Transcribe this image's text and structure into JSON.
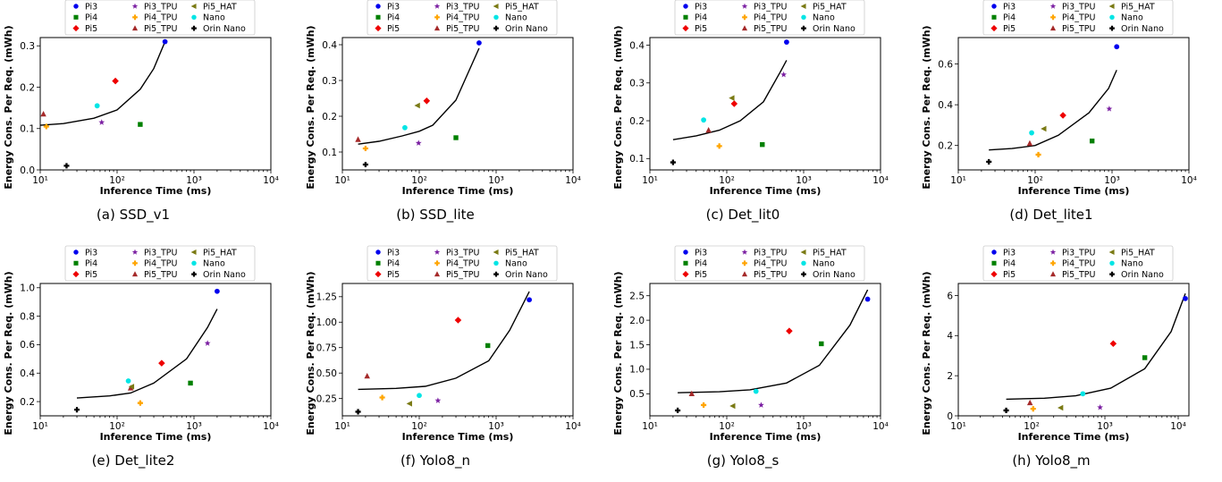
{
  "legend_entries": [
    {
      "name": "Pi3",
      "marker": "circle",
      "color": "#0000ee"
    },
    {
      "name": "Pi3_TPU",
      "marker": "star",
      "color": "#7b1fa2"
    },
    {
      "name": "Pi5_HAT",
      "marker": "triangle-left",
      "color": "#7a7a14"
    },
    {
      "name": "Pi4",
      "marker": "square",
      "color": "#008000"
    },
    {
      "name": "Pi4_TPU",
      "marker": "plus-bold",
      "color": "#ffa500"
    },
    {
      "name": "Nano",
      "marker": "circle",
      "color": "#00e5e5"
    },
    {
      "name": "Pi5",
      "marker": "diamond",
      "color": "#ee0000"
    },
    {
      "name": "Pi5_TPU",
      "marker": "triangle-up",
      "color": "#a52a2a"
    },
    {
      "name": "Orin Nano",
      "marker": "plus-bold",
      "color": "#000000"
    }
  ],
  "colors": {
    "fit_line": "#000000",
    "axes": "#000000"
  },
  "chart_data": [
    {
      "type": "scatter",
      "caption": "(a) SSD_v1",
      "xlabel": "Inference Time (ms)",
      "ylabel": "Energy Cons. Per Req. (mWh)",
      "xscale": "log",
      "xlim": [
        10,
        10000
      ],
      "ylim": [
        0,
        0.32
      ],
      "xticks": [
        10,
        100,
        1000,
        10000
      ],
      "xticklabels": [
        "10¹",
        "10²",
        "10³",
        "10⁴"
      ],
      "yticks": [
        0.0,
        0.1,
        0.2,
        0.3
      ],
      "yticklabels": [
        "0.0",
        "0.1",
        "0.2",
        "0.3"
      ],
      "legend_placement": "top",
      "series": [
        {
          "name": "Pi3",
          "x": 420,
          "y": 0.31
        },
        {
          "name": "Pi4",
          "x": 200,
          "y": 0.11
        },
        {
          "name": "Pi5",
          "x": 95,
          "y": 0.215
        },
        {
          "name": "Pi3_TPU",
          "x": 63,
          "y": 0.115
        },
        {
          "name": "Pi4_TPU",
          "x": 12,
          "y": 0.105
        },
        {
          "name": "Pi5_TPU",
          "x": 11,
          "y": 0.135
        },
        {
          "name": "Pi5_HAT",
          "x": null,
          "y": null
        },
        {
          "name": "Nano",
          "x": 55,
          "y": 0.155
        },
        {
          "name": "Orin Nano",
          "x": 22,
          "y": 0.01
        }
      ],
      "fit_line": {
        "x": [
          10,
          20,
          50,
          100,
          200,
          300,
          420
        ],
        "y": [
          0.108,
          0.112,
          0.125,
          0.145,
          0.195,
          0.245,
          0.31
        ]
      }
    },
    {
      "type": "scatter",
      "caption": "(b) SSD_lite",
      "xlabel": "Inference Time (ms)",
      "ylabel": "Energy Cons. Per Req. (mWh)",
      "xscale": "log",
      "xlim": [
        10,
        10000
      ],
      "ylim": [
        0.05,
        0.42
      ],
      "xticks": [
        10,
        100,
        1000,
        10000
      ],
      "xticklabels": [
        "10¹",
        "10²",
        "10³",
        "10⁴"
      ],
      "yticks": [
        0.1,
        0.2,
        0.3,
        0.4
      ],
      "yticklabels": [
        "0.1",
        "0.2",
        "0.3",
        "0.4"
      ],
      "legend_placement": "top",
      "series": [
        {
          "name": "Pi3",
          "x": 600,
          "y": 0.405
        },
        {
          "name": "Pi4",
          "x": 300,
          "y": 0.14
        },
        {
          "name": "Pi5",
          "x": 125,
          "y": 0.243
        },
        {
          "name": "Pi3_TPU",
          "x": 98,
          "y": 0.125
        },
        {
          "name": "Pi4_TPU",
          "x": 20,
          "y": 0.11
        },
        {
          "name": "Pi5_TPU",
          "x": 16,
          "y": 0.135
        },
        {
          "name": "Pi5_HAT",
          "x": 95,
          "y": 0.23
        },
        {
          "name": "Nano",
          "x": 65,
          "y": 0.168
        },
        {
          "name": "Orin Nano",
          "x": 20,
          "y": 0.065
        }
      ],
      "fit_line": {
        "x": [
          16,
          30,
          60,
          100,
          150,
          300,
          600
        ],
        "y": [
          0.122,
          0.13,
          0.145,
          0.158,
          0.175,
          0.245,
          0.39
        ]
      }
    },
    {
      "type": "scatter",
      "caption": "(c) Det_lit0",
      "xlabel": "Inference Time (ms)",
      "ylabel": "Energy Cons. Per Req. (mWh)",
      "xscale": "log",
      "xlim": [
        10,
        10000
      ],
      "ylim": [
        0.07,
        0.42
      ],
      "xticks": [
        10,
        100,
        1000,
        10000
      ],
      "xticklabels": [
        "10¹",
        "10²",
        "10³",
        "10⁴"
      ],
      "yticks": [
        0.1,
        0.2,
        0.3,
        0.4
      ],
      "yticklabels": [
        "0.1",
        "0.2",
        "0.3",
        "0.4"
      ],
      "legend_placement": "top",
      "series": [
        {
          "name": "Pi3",
          "x": 600,
          "y": 0.408
        },
        {
          "name": "Pi4",
          "x": 290,
          "y": 0.137
        },
        {
          "name": "Pi5",
          "x": 125,
          "y": 0.245
        },
        {
          "name": "Pi3_TPU",
          "x": 550,
          "y": 0.322
        },
        {
          "name": "Pi4_TPU",
          "x": 80,
          "y": 0.133
        },
        {
          "name": "Pi5_TPU",
          "x": 58,
          "y": 0.175
        },
        {
          "name": "Pi5_HAT",
          "x": 117,
          "y": 0.26
        },
        {
          "name": "Nano",
          "x": 50,
          "y": 0.202
        },
        {
          "name": "Orin Nano",
          "x": 20,
          "y": 0.09
        }
      ],
      "fit_line": {
        "x": [
          20,
          40,
          80,
          150,
          300,
          500,
          600
        ],
        "y": [
          0.15,
          0.16,
          0.175,
          0.2,
          0.25,
          0.33,
          0.36
        ]
      }
    },
    {
      "type": "scatter",
      "caption": "(d) Det_lite1",
      "xlabel": "Inference Time (ms)",
      "ylabel": "Energy Cons. Per Req. (mWh)",
      "xscale": "log",
      "xlim": [
        10,
        10000
      ],
      "ylim": [
        0.08,
        0.73
      ],
      "xticks": [
        10,
        100,
        1000,
        10000
      ],
      "xticklabels": [
        "10¹",
        "10²",
        "10³",
        "10⁴"
      ],
      "yticks": [
        0.2,
        0.4,
        0.6
      ],
      "yticklabels": [
        "0.2",
        "0.4",
        "0.6"
      ],
      "legend_placement": "top",
      "series": [
        {
          "name": "Pi3",
          "x": 1150,
          "y": 0.685
        },
        {
          "name": "Pi4",
          "x": 550,
          "y": 0.222
        },
        {
          "name": "Pi5",
          "x": 230,
          "y": 0.348
        },
        {
          "name": "Pi3_TPU",
          "x": 920,
          "y": 0.38
        },
        {
          "name": "Pi4_TPU",
          "x": 110,
          "y": 0.155
        },
        {
          "name": "Pi5_TPU",
          "x": 85,
          "y": 0.21
        },
        {
          "name": "Pi5_HAT",
          "x": 130,
          "y": 0.282
        },
        {
          "name": "Nano",
          "x": 90,
          "y": 0.262
        },
        {
          "name": "Orin Nano",
          "x": 25,
          "y": 0.12
        }
      ],
      "fit_line": {
        "x": [
          25,
          50,
          100,
          200,
          500,
          900,
          1150
        ],
        "y": [
          0.178,
          0.185,
          0.2,
          0.25,
          0.36,
          0.48,
          0.57
        ]
      }
    },
    {
      "type": "scatter",
      "caption": "(e) Det_lite2",
      "xlabel": "Inference Time (ms)",
      "ylabel": "Energy Cons. Per Req. (mWh)",
      "xscale": "log",
      "xlim": [
        10,
        10000
      ],
      "ylim": [
        0.1,
        1.03
      ],
      "xticks": [
        10,
        100,
        1000,
        10000
      ],
      "xticklabels": [
        "10¹",
        "10²",
        "10³",
        "10⁴"
      ],
      "yticks": [
        0.2,
        0.4,
        0.6,
        0.8,
        1.0
      ],
      "yticklabels": [
        "0.2",
        "0.4",
        "0.6",
        "0.8",
        "1.0"
      ],
      "legend_placement": "top",
      "series": [
        {
          "name": "Pi3",
          "x": 2000,
          "y": 0.975
        },
        {
          "name": "Pi4",
          "x": 900,
          "y": 0.33
        },
        {
          "name": "Pi5",
          "x": 380,
          "y": 0.47
        },
        {
          "name": "Pi3_TPU",
          "x": 1500,
          "y": 0.61
        },
        {
          "name": "Pi4_TPU",
          "x": 200,
          "y": 0.19
        },
        {
          "name": "Pi5_TPU",
          "x": 150,
          "y": 0.295
        },
        {
          "name": "Pi5_HAT",
          "x": 155,
          "y": 0.305
        },
        {
          "name": "Nano",
          "x": 140,
          "y": 0.345
        },
        {
          "name": "Orin Nano",
          "x": 30,
          "y": 0.143
        }
      ],
      "fit_line": {
        "x": [
          30,
          80,
          150,
          300,
          800,
          1500,
          2000
        ],
        "y": [
          0.225,
          0.24,
          0.26,
          0.33,
          0.5,
          0.72,
          0.85
        ]
      }
    },
    {
      "type": "scatter",
      "caption": "(f) Yolo8_n",
      "xlabel": "Inference Time (ms)",
      "ylabel": "Energy Cons. Per Req. (mWh)",
      "xscale": "log",
      "xlim": [
        10,
        10000
      ],
      "ylim": [
        0.08,
        1.38
      ],
      "xticks": [
        10,
        100,
        1000,
        10000
      ],
      "xticklabels": [
        "10¹",
        "10²",
        "10³",
        "10⁴"
      ],
      "yticks": [
        0.25,
        0.5,
        0.75,
        1.0,
        1.25
      ],
      "yticklabels": [
        "0.25",
        "0.50",
        "0.75",
        "1.00",
        "1.25"
      ],
      "legend_placement": "top",
      "series": [
        {
          "name": "Pi3",
          "x": 2700,
          "y": 1.22
        },
        {
          "name": "Pi4",
          "x": 780,
          "y": 0.77
        },
        {
          "name": "Pi5",
          "x": 320,
          "y": 1.02
        },
        {
          "name": "Pi3_TPU",
          "x": 175,
          "y": 0.23
        },
        {
          "name": "Pi4_TPU",
          "x": 33,
          "y": 0.26
        },
        {
          "name": "Pi5_TPU",
          "x": 21,
          "y": 0.47
        },
        {
          "name": "Pi5_HAT",
          "x": 75,
          "y": 0.2
        },
        {
          "name": "Nano",
          "x": 100,
          "y": 0.28
        },
        {
          "name": "Orin Nano",
          "x": 16,
          "y": 0.12
        }
      ],
      "fit_line": {
        "x": [
          16,
          50,
          120,
          300,
          800,
          1500,
          2700
        ],
        "y": [
          0.34,
          0.35,
          0.37,
          0.45,
          0.62,
          0.92,
          1.3
        ]
      }
    },
    {
      "type": "scatter",
      "caption": "(g) Yolo8_s",
      "xlabel": "Inference Time (ms)",
      "ylabel": "Energy Cons. Per Req. (mWh)",
      "xscale": "log",
      "xlim": [
        10,
        10000
      ],
      "ylim": [
        0.05,
        2.75
      ],
      "xticks": [
        10,
        100,
        1000,
        10000
      ],
      "xticklabels": [
        "10¹",
        "10²",
        "10³",
        "10⁴"
      ],
      "yticks": [
        0.5,
        1.0,
        1.5,
        2.0,
        2.5
      ],
      "yticklabels": [
        "0.5",
        "1.0",
        "1.5",
        "2.0",
        "2.5"
      ],
      "legend_placement": "top",
      "series": [
        {
          "name": "Pi3",
          "x": 6800,
          "y": 2.43
        },
        {
          "name": "Pi4",
          "x": 1700,
          "y": 1.52
        },
        {
          "name": "Pi5",
          "x": 650,
          "y": 1.78
        },
        {
          "name": "Pi3_TPU",
          "x": 280,
          "y": 0.27
        },
        {
          "name": "Pi4_TPU",
          "x": 50,
          "y": 0.27
        },
        {
          "name": "Pi5_TPU",
          "x": 35,
          "y": 0.5
        },
        {
          "name": "Pi5_HAT",
          "x": 120,
          "y": 0.25
        },
        {
          "name": "Nano",
          "x": 240,
          "y": 0.55
        },
        {
          "name": "Orin Nano",
          "x": 23,
          "y": 0.16
        }
      ],
      "fit_line": {
        "x": [
          23,
          80,
          200,
          600,
          1600,
          4000,
          6800
        ],
        "y": [
          0.52,
          0.54,
          0.58,
          0.72,
          1.08,
          1.9,
          2.62
        ]
      }
    },
    {
      "type": "scatter",
      "caption": "(h) Yolo8_m",
      "xlabel": "Inference Time (ms)",
      "ylabel": "Energy Cons. Per Req. (mWh)",
      "xscale": "log",
      "xlim": [
        10,
        14000
      ],
      "ylim": [
        0,
        6.6
      ],
      "xticks": [
        10,
        100,
        1000,
        10000
      ],
      "xticklabels": [
        "10¹",
        "10²",
        "10³",
        "10⁴"
      ],
      "yticks": [
        0,
        2,
        4,
        6
      ],
      "yticklabels": [
        "0",
        "2",
        "4",
        "6"
      ],
      "legend_placement": "top",
      "series": [
        {
          "name": "Pi3",
          "x": 12500,
          "y": 5.85
        },
        {
          "name": "Pi4",
          "x": 3500,
          "y": 2.9
        },
        {
          "name": "Pi5",
          "x": 1300,
          "y": 3.6
        },
        {
          "name": "Pi3_TPU",
          "x": 860,
          "y": 0.42
        },
        {
          "name": "Pi4_TPU",
          "x": 105,
          "y": 0.35
        },
        {
          "name": "Pi5_TPU",
          "x": 95,
          "y": 0.65
        },
        {
          "name": "Pi5_HAT",
          "x": 250,
          "y": 0.4
        },
        {
          "name": "Nano",
          "x": 500,
          "y": 1.1
        },
        {
          "name": "Orin Nano",
          "x": 45,
          "y": 0.27
        }
      ],
      "fit_line": {
        "x": [
          45,
          150,
          400,
          1200,
          3500,
          8000,
          12500
        ],
        "y": [
          0.83,
          0.88,
          1.0,
          1.38,
          2.35,
          4.2,
          6.1
        ]
      }
    }
  ]
}
